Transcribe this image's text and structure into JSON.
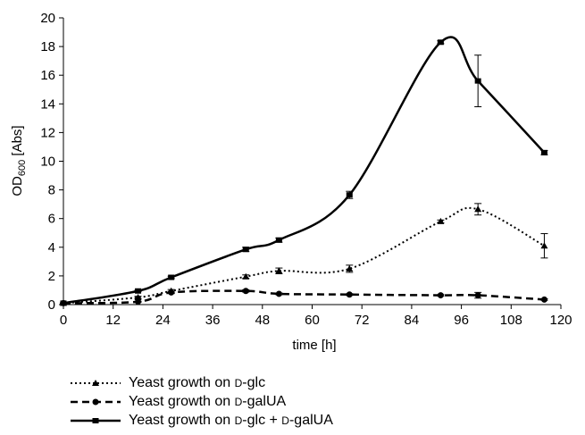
{
  "chart_data": {
    "type": "line",
    "xlabel": "time [h]",
    "ylabel_main": "OD",
    "ylabel_sub": "600",
    "ylabel_suffix": " [Abs]",
    "xlim": [
      0,
      120
    ],
    "ylim": [
      0,
      20
    ],
    "x_ticks": [
      0,
      12,
      24,
      36,
      48,
      60,
      72,
      84,
      96,
      108,
      120
    ],
    "y_ticks": [
      0,
      2,
      4,
      6,
      8,
      10,
      12,
      14,
      16,
      18,
      20
    ],
    "grid": false,
    "legend_position": "bottom-left",
    "series": [
      {
        "name": "Yeast growth on D-glc",
        "line_style": "dotted",
        "marker": "triangle",
        "color": "#000000",
        "x": [
          0,
          18,
          26,
          44,
          52,
          69,
          91,
          100,
          116
        ],
        "y": [
          0.1,
          0.5,
          0.95,
          1.95,
          2.35,
          2.5,
          5.8,
          6.65,
          4.1
        ],
        "error": [
          0.02,
          0.08,
          0.1,
          0.12,
          0.2,
          0.25,
          0.1,
          0.4,
          0.85
        ]
      },
      {
        "name": "Yeast growth on D-galUA",
        "line_style": "dashed",
        "marker": "circle",
        "color": "#000000",
        "x": [
          0,
          18,
          26,
          44,
          52,
          69,
          91,
          100,
          116
        ],
        "y": [
          0.1,
          0.2,
          0.85,
          0.95,
          0.75,
          0.7,
          0.65,
          0.65,
          0.35
        ],
        "error": [
          0.02,
          0.03,
          0.08,
          0.08,
          0.06,
          0.06,
          0.05,
          0.2,
          0.05
        ]
      },
      {
        "name": "Yeast growth on D-glc + D-galUA",
        "line_style": "solid",
        "marker": "square",
        "color": "#000000",
        "x": [
          0,
          18,
          26,
          44,
          52,
          69,
          91,
          100,
          116
        ],
        "y": [
          0.1,
          0.95,
          1.9,
          3.85,
          4.5,
          7.65,
          18.3,
          15.6,
          10.6
        ],
        "error": [
          0.02,
          0.05,
          0.08,
          0.15,
          0.15,
          0.25,
          0.1,
          1.8,
          0.15
        ]
      }
    ]
  },
  "legend": [
    {
      "pre": "Yeast growth on ",
      "sc1": "D",
      "post1": "-glc",
      "mid": "",
      "sc2": "",
      "post2": ""
    },
    {
      "pre": "Yeast growth on ",
      "sc1": "D",
      "post1": "-galUA",
      "mid": "",
      "sc2": "",
      "post2": ""
    },
    {
      "pre": "Yeast growth on ",
      "sc1": "D",
      "post1": "-glc",
      "mid": " + ",
      "sc2": "D",
      "post2": "-galUA"
    }
  ]
}
